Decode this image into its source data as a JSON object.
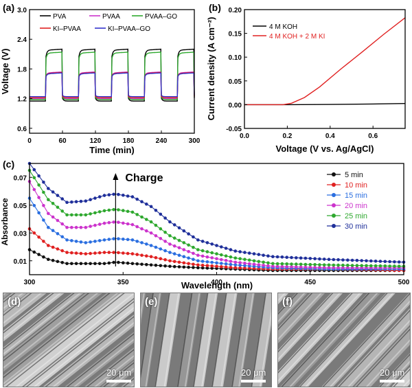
{
  "chart_data": [
    {
      "panel": "(a)",
      "type": "line",
      "xlabel": "Time (min)",
      "ylabel": "Voltage (V)",
      "xlim": [
        0,
        300
      ],
      "ylim": [
        0.5,
        3.0
      ],
      "xticks": [
        0,
        60,
        120,
        180,
        240,
        300
      ],
      "yticks": [
        0.6,
        1.2,
        1.8,
        2.4,
        3.0
      ],
      "xtick_labels": [
        "0",
        "60",
        "120",
        "180",
        "240",
        "300"
      ],
      "ytick_labels": [
        "0.6",
        "1.2",
        "1.8",
        "2.4",
        "3.0"
      ],
      "legend": [
        "PVA",
        "PVAA",
        "PVAA–GO",
        "KI–PVAA",
        "KI–PVAA–GO"
      ],
      "series": [
        {
          "name": "PVA",
          "color": "#000000",
          "high": 2.18,
          "low": 1.15
        },
        {
          "name": "PVAA",
          "color": "#cc33cc",
          "high": 1.72,
          "low": 1.2
        },
        {
          "name": "PVAA–GO",
          "color": "#2ea82e",
          "high": 2.12,
          "low": 1.18
        },
        {
          "name": "KI–PVAA",
          "color": "#e02020",
          "high": 1.71,
          "low": 1.22
        },
        {
          "name": "KI–PVAA–GO",
          "color": "#3333cc",
          "high": 1.7,
          "low": 1.24
        }
      ],
      "cycle_period_min": 60,
      "charge_start_min": 30
    },
    {
      "panel": "(b)",
      "type": "line",
      "xlabel": "Voltage (V vs. Ag/AgCl)",
      "ylabel": "Current density (A cm⁻²)",
      "xlim": [
        0.0,
        0.75
      ],
      "ylim": [
        -0.05,
        0.2
      ],
      "xticks": [
        0.0,
        0.2,
        0.4,
        0.6
      ],
      "yticks": [
        -0.05,
        0.0,
        0.05,
        0.1,
        0.15,
        0.2
      ],
      "xtick_labels": [
        "0.0",
        "0.2",
        "0.4",
        "0.6"
      ],
      "ytick_labels": [
        "-0.05",
        "0.00",
        "0.05",
        "0.10",
        "0.15",
        "0.20"
      ],
      "legend": [
        "4 M KOH",
        "4 M KOH + 2 M KI"
      ],
      "series": [
        {
          "name": "4 M KOH",
          "color": "#000000",
          "x": [
            0.0,
            0.2,
            0.4,
            0.6,
            0.75
          ],
          "y": [
            0.0,
            0.0,
            0.0005,
            0.0015,
            0.0025
          ]
        },
        {
          "name": "4 M KOH + 2 M KI",
          "color": "#e02020",
          "x": [
            0.0,
            0.1,
            0.18,
            0.22,
            0.28,
            0.35,
            0.45,
            0.55,
            0.65,
            0.75
          ],
          "y": [
            0.0,
            0.0,
            0.0,
            0.003,
            0.015,
            0.037,
            0.075,
            0.111,
            0.148,
            0.183
          ]
        }
      ]
    },
    {
      "panel": "(c)",
      "type": "line",
      "xlabel": "Wavelength (nm)",
      "ylabel": "Absorbance",
      "xlim": [
        300,
        500
      ],
      "ylim": [
        0.0,
        0.08
      ],
      "xticks": [
        300,
        350,
        400,
        450,
        500
      ],
      "yticks": [
        0.01,
        0.03,
        0.05,
        0.07
      ],
      "xtick_labels": [
        "300",
        "350",
        "400",
        "450",
        "500"
      ],
      "ytick_labels": [
        "0.01",
        "0.03",
        "0.05",
        "0.07"
      ],
      "annotation": "Charge",
      "annotation_x": 346,
      "legend": [
        "5 min",
        "10 min",
        "15 min",
        "20 min",
        "25 min",
        "30 min"
      ],
      "x": [
        300,
        310,
        320,
        330,
        340,
        346,
        355,
        365,
        375,
        390,
        410,
        430,
        460,
        500
      ],
      "series": [
        {
          "name": "5 min",
          "color": "#111111",
          "y": [
            0.018,
            0.011,
            0.008,
            0.008,
            0.008,
            0.009,
            0.008,
            0.007,
            0.006,
            0.005,
            0.004,
            0.003,
            0.003,
            0.003
          ]
        },
        {
          "name": "10 min",
          "color": "#e02020",
          "y": [
            0.033,
            0.021,
            0.016,
            0.015,
            0.016,
            0.016,
            0.015,
            0.013,
            0.01,
            0.007,
            0.005,
            0.004,
            0.004,
            0.003
          ]
        },
        {
          "name": "15 min",
          "color": "#2a6ee0",
          "y": [
            0.055,
            0.034,
            0.025,
            0.023,
            0.025,
            0.026,
            0.025,
            0.021,
            0.016,
            0.01,
            0.007,
            0.005,
            0.004,
            0.004
          ]
        },
        {
          "name": "20 min",
          "color": "#cc33cc",
          "y": [
            0.067,
            0.044,
            0.034,
            0.034,
            0.037,
            0.038,
            0.036,
            0.03,
            0.022,
            0.014,
            0.009,
            0.006,
            0.005,
            0.005
          ]
        },
        {
          "name": "25 min",
          "color": "#2ea82e",
          "y": [
            0.075,
            0.054,
            0.043,
            0.043,
            0.046,
            0.047,
            0.045,
            0.038,
            0.028,
            0.018,
            0.012,
            0.008,
            0.007,
            0.006
          ]
        },
        {
          "name": "30 min",
          "color": "#1f2f9a",
          "y": [
            0.08,
            0.062,
            0.052,
            0.053,
            0.057,
            0.058,
            0.056,
            0.049,
            0.038,
            0.025,
            0.017,
            0.013,
            0.011,
            0.009
          ]
        }
      ]
    }
  ],
  "sem_images": [
    {
      "panel": "(d)",
      "scale_label": "20 μm"
    },
    {
      "panel": "(e)",
      "scale_label": "20 μm"
    },
    {
      "panel": "(f)",
      "scale_label": "20 μm"
    }
  ]
}
